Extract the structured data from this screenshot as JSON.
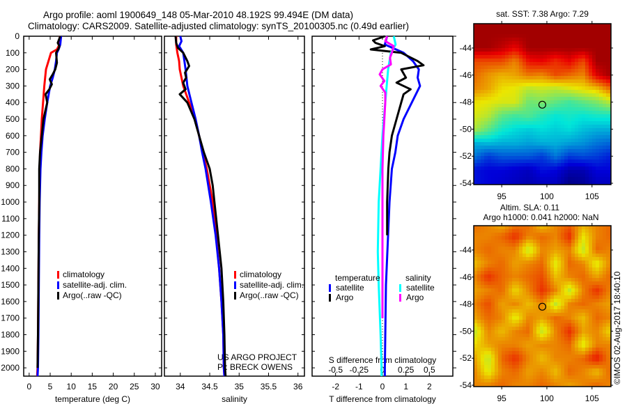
{
  "header": {
    "line1": "Argo profile: aoml 1900649_148 05-Mar-2010 48.192S 99.494E (DM data)",
    "line2": "Climatology: CARS2009. Satellite-adjusted climatology: synTS_20100305.nc (0.49d earlier)"
  },
  "credits": {
    "project": "US ARGO PROJECT",
    "pi": "PI: BRECK OWENS",
    "footer": "©IMOS 02-Aug-2017 18:40:10"
  },
  "colors": {
    "climatology": "#ff0000",
    "satellite": "#0000ff",
    "argo": "#000000",
    "sal_satellite": "#00ffff",
    "sal_argo": "#ff00ff"
  },
  "chart_data": [
    {
      "id": "temperature",
      "type": "line",
      "xlabel": "temperature (deg C)",
      "ylabel": "",
      "xlim": [
        -1.3,
        31.5
      ],
      "ylim": [
        0,
        2050
      ],
      "xticks": [
        0,
        5,
        10,
        15,
        20,
        25,
        30
      ],
      "yticks": [
        0,
        100,
        200,
        300,
        400,
        500,
        600,
        700,
        800,
        900,
        1000,
        1100,
        1200,
        1300,
        1400,
        1500,
        1600,
        1700,
        1800,
        1900,
        2000
      ],
      "legend": {
        "position": "lower-middle",
        "entries": [
          "climatology",
          "satellite-adj. clim.",
          "Argo(..raw -QC)"
        ]
      },
      "series": [
        {
          "name": "climatology",
          "color_key": "climatology",
          "depth": [
            0,
            50,
            80,
            100,
            150,
            200,
            250,
            300,
            400,
            500,
            600,
            700,
            800,
            1000,
            1200,
            1500,
            1800,
            2000,
            2050
          ],
          "values": [
            7.3,
            7.2,
            6.6,
            5.2,
            4.6,
            4.0,
            3.8,
            3.6,
            3.3,
            3.0,
            2.8,
            2.6,
            2.5,
            2.4,
            2.3,
            2.2,
            2.1,
            2.0,
            1.9
          ]
        },
        {
          "name": "satellite-adj. clim.",
          "color_key": "satellite",
          "depth": [
            0,
            50,
            80,
            100,
            150,
            200,
            250,
            300,
            400,
            500,
            600,
            700,
            800,
            1000,
            1200,
            1500,
            1800,
            2000,
            2050
          ],
          "values": [
            7.6,
            7.4,
            7.0,
            6.6,
            6.4,
            6.1,
            5.6,
            5.0,
            4.3,
            3.7,
            3.2,
            2.9,
            2.7,
            2.5,
            2.4,
            2.3,
            2.2,
            2.1,
            2.0
          ]
        },
        {
          "name": "Argo(..raw -QC)",
          "color_key": "argo",
          "depth": [
            0,
            40,
            60,
            75,
            100,
            160,
            200,
            230,
            260,
            290,
            320,
            350,
            400,
            500,
            600,
            700,
            800,
            1000,
            1200,
            1500,
            1800,
            2000
          ],
          "values": [
            7.4,
            6.8,
            7.2,
            7.0,
            6.4,
            6.6,
            6.2,
            5.6,
            4.9,
            5.4,
            4.8,
            3.9,
            4.3,
            3.4,
            3.0,
            2.6,
            2.4,
            2.4,
            2.3,
            2.2,
            2.1,
            2.0
          ]
        }
      ]
    },
    {
      "id": "salinity",
      "type": "line",
      "xlabel": "salinity",
      "xlim": [
        33.73,
        36.11
      ],
      "ylim": [
        0,
        2050
      ],
      "xticks": [
        34,
        34.5,
        35,
        35.5,
        36
      ],
      "yticks": [
        0,
        100,
        200,
        300,
        400,
        500,
        600,
        700,
        800,
        900,
        1000,
        1100,
        1200,
        1300,
        1400,
        1500,
        1600,
        1700,
        1800,
        1900,
        2000
      ],
      "legend": {
        "position": "lower-middle",
        "entries": [
          "climatology",
          "satellite-adj. clim.",
          "Argo(..raw -QC)"
        ]
      },
      "series": [
        {
          "name": "climatology",
          "color_key": "climatology",
          "depth": [
            0,
            50,
            100,
            150,
            200,
            300,
            400,
            500,
            600,
            700,
            800,
            1000,
            1200,
            1400,
            1600,
            1800,
            2000,
            2050
          ],
          "values": [
            33.93,
            33.93,
            33.95,
            33.98,
            33.99,
            34.05,
            34.15,
            34.25,
            34.32,
            34.38,
            34.45,
            34.55,
            34.61,
            34.66,
            34.7,
            34.73,
            34.74,
            34.75
          ]
        },
        {
          "name": "satellite-adj. clim.",
          "color_key": "satellite",
          "depth": [
            0,
            30,
            60,
            100,
            150,
            200,
            300,
            400,
            500,
            600,
            700,
            800,
            1000,
            1200,
            1400,
            1600,
            1800,
            2000,
            2050
          ],
          "values": [
            34.0,
            34.02,
            33.98,
            34.05,
            34.07,
            34.09,
            34.12,
            34.19,
            34.26,
            34.32,
            34.37,
            34.43,
            34.52,
            34.6,
            34.66,
            34.7,
            34.73,
            34.74,
            34.75
          ]
        },
        {
          "name": "Argo(..raw -QC)",
          "color_key": "argo",
          "depth": [
            0,
            40,
            70,
            100,
            150,
            180,
            220,
            250,
            280,
            320,
            350,
            400,
            500,
            600,
            700,
            800,
            900,
            1000,
            1200,
            1400,
            1600,
            1800,
            2000,
            2050
          ],
          "values": [
            33.92,
            33.93,
            33.96,
            34.05,
            34.12,
            34.15,
            34.08,
            34.1,
            34.05,
            34.09,
            33.99,
            34.12,
            34.24,
            34.32,
            34.4,
            34.5,
            34.55,
            34.58,
            34.64,
            34.7,
            34.73,
            34.75,
            34.76,
            34.77
          ]
        }
      ]
    },
    {
      "id": "difference",
      "type": "line",
      "xlabel": "T difference from climatology",
      "x2label": "S difference from climatology",
      "xlim": [
        -3.0,
        3.0
      ],
      "x2lim": [
        -0.75,
        0.75
      ],
      "ylim": [
        0,
        2050
      ],
      "xticks": [
        -2,
        -1,
        0,
        1,
        2
      ],
      "x2ticks": [
        -0.5,
        -0.25,
        0,
        0.25,
        0.5
      ],
      "x2ticklabels": [
        "-0.5",
        "-0.25",
        "0",
        "0.25",
        "0.5"
      ],
      "legend": {
        "position": "lower-middle",
        "temperature_title": "temperature",
        "salinity_title": "salinity",
        "entries": [
          "satellite",
          "Argo",
          "satellite",
          "Argo"
        ]
      },
      "series": [
        {
          "name": "T satellite",
          "axis": "T",
          "color_key": "satellite",
          "depth": [
            0,
            50,
            100,
            150,
            200,
            250,
            300,
            400,
            500,
            600,
            700,
            800,
            1000,
            1500,
            2000,
            2050
          ],
          "values": [
            0.2,
            0.1,
            0.9,
            1.3,
            1.55,
            1.5,
            1.6,
            1.25,
            0.9,
            0.65,
            0.55,
            0.4,
            0.3,
            0.15,
            0.1,
            0.1
          ]
        },
        {
          "name": "T Argo",
          "axis": "T",
          "color_key": "argo",
          "depth": [
            0,
            25,
            40,
            60,
            80,
            100,
            150,
            175,
            200,
            250,
            280,
            320,
            350,
            400,
            500,
            600,
            700,
            800,
            1000,
            1200
          ],
          "values": [
            0.1,
            -0.4,
            -0.3,
            0.1,
            -0.5,
            0.8,
            1.5,
            1.75,
            0.8,
            1.0,
            0.6,
            1.2,
            0.9,
            0.8,
            0.6,
            0.4,
            0.3,
            0.25,
            0.2,
            0.2
          ]
        },
        {
          "name": "S satellite",
          "axis": "S",
          "color_key": "sal_satellite",
          "depth": [
            0,
            50,
            100,
            200,
            400,
            600,
            800,
            1000,
            1300,
            1500,
            1800,
            2000,
            2050
          ],
          "values": [
            0.12,
            0.14,
            0.09,
            0.06,
            0.03,
            0.0,
            -0.02,
            -0.04,
            -0.05,
            -0.04,
            -0.02,
            -0.01,
            -0.01
          ]
        },
        {
          "name": "S Argo",
          "axis": "S",
          "color_key": "sal_argo",
          "depth": [
            0,
            30,
            60,
            100,
            130,
            170,
            200,
            230,
            270,
            300,
            340,
            400,
            500,
            600,
            800,
            1000,
            1500,
            1700
          ],
          "values": [
            0.05,
            0.03,
            0.12,
            0.1,
            0.08,
            0.09,
            0.0,
            -0.03,
            0.02,
            -0.02,
            0.03,
            0.03,
            0.02,
            0.01,
            0.0,
            0.0,
            0.0,
            0.0
          ]
        }
      ]
    },
    {
      "id": "sst_map",
      "type": "heatmap",
      "title": "sat. SST: 7.38 Argo: 7.29",
      "xticks": [
        95,
        100,
        105
      ],
      "yticks": [
        -44,
        -46,
        -48,
        -50,
        -52,
        -54
      ],
      "xlim": [
        91.9,
        107.1
      ],
      "ylim": [
        -54.1,
        -42.2
      ],
      "lons": [
        92,
        93.5,
        95,
        96.5,
        98,
        99.5,
        101,
        102.5,
        104,
        105.5,
        107
      ],
      "lats": [
        -42,
        -43,
        -44,
        -45,
        -46,
        -47,
        -48,
        -49,
        -50,
        -51,
        -52,
        -53,
        -54
      ],
      "crange": [
        4,
        10.3
      ],
      "values": [
        [
          10,
          10,
          10,
          10,
          10,
          10,
          10,
          10,
          10,
          10,
          10
        ],
        [
          10,
          10,
          10,
          10,
          10,
          10,
          10,
          10,
          10,
          10,
          10
        ],
        [
          10,
          10,
          9.8,
          9.5,
          10,
          10,
          10,
          10,
          10,
          10,
          10
        ],
        [
          9,
          9,
          9.0,
          8.6,
          9.4,
          9.5,
          9.2,
          9.5,
          9.0,
          10,
          10
        ],
        [
          8.8,
          8.5,
          8.3,
          8.4,
          8.7,
          8.6,
          9.0,
          8.8,
          8.6,
          9.6,
          10
        ],
        [
          8.6,
          8.4,
          8.0,
          7.9,
          7.6,
          7.7,
          7.6,
          7.8,
          8.0,
          8.2,
          8.8
        ],
        [
          8.0,
          7.9,
          7.8,
          7.8,
          7.1,
          7.2,
          7.0,
          6.8,
          7.0,
          7.2,
          7.6
        ],
        [
          7.8,
          7.6,
          7.0,
          6.8,
          6.9,
          6.6,
          6.4,
          6.5,
          6.4,
          6.5,
          6.5
        ],
        [
          7.5,
          7.0,
          6.5,
          6.3,
          6.2,
          6.3,
          6.2,
          6.3,
          6.1,
          6.0,
          6.0
        ],
        [
          6.0,
          6.1,
          6.0,
          6.0,
          5.9,
          6.0,
          6.0,
          5.9,
          5.8,
          5.6,
          5.5
        ],
        [
          5.6,
          5.2,
          5.4,
          5.4,
          5.4,
          5.2,
          5.6,
          5.2,
          5.3,
          5.2,
          5.0
        ],
        [
          4.9,
          4.8,
          4.8,
          4.7,
          4.6,
          4.9,
          4.8,
          4.5,
          4.5,
          4.8,
          4.8
        ],
        [
          4.9,
          4.8,
          4.7,
          4.6,
          4.5,
          4.6,
          4.6,
          4.2,
          4.3,
          4.6,
          4.6
        ]
      ],
      "marker": {
        "lon": 99.494,
        "lat": -48.192
      }
    },
    {
      "id": "sla_map",
      "type": "heatmap",
      "title": "Altim. SLA: 0.11",
      "subtitle": "Argo h1000: 0.041 h2000: NaN",
      "xticks": [
        95,
        100,
        105
      ],
      "yticks": [
        -44,
        -46,
        -48,
        -50,
        -52,
        -54
      ],
      "xlim": [
        91.9,
        107.1
      ],
      "ylim": [
        -54.1,
        -42.2
      ],
      "lons": [
        92,
        93.5,
        95,
        96.5,
        98,
        99.5,
        101,
        102.5,
        104,
        105.5,
        107
      ],
      "lats": [
        -42,
        -43,
        -44,
        -45,
        -46,
        -47,
        -48,
        -49,
        -50,
        -51,
        -52,
        -53,
        -54
      ],
      "crange": [
        -0.4,
        0.4
      ],
      "values": [
        [
          0.1,
          0.05,
          -0.05,
          0.05,
          0.1,
          -0.1,
          0.05,
          0.1,
          0.0,
          0.05,
          0.1
        ],
        [
          0.05,
          0.05,
          0.1,
          0.2,
          0.05,
          0.1,
          0.05,
          0.2,
          -0.12,
          0.05,
          0.1
        ],
        [
          0.05,
          0.1,
          0.05,
          0.05,
          -0.2,
          0.05,
          0.0,
          0.05,
          -0.2,
          0.1,
          0.05
        ],
        [
          -0.05,
          0.05,
          0.1,
          0.0,
          0.05,
          0.1,
          -0.15,
          0.1,
          0.05,
          -0.15,
          0.05
        ],
        [
          0.05,
          0.2,
          0.1,
          0.05,
          0.1,
          0.15,
          -0.05,
          0.05,
          0.1,
          0.0,
          0.1
        ],
        [
          0.0,
          0.05,
          0.1,
          -0.1,
          0.05,
          0.2,
          0.05,
          -0.2,
          0.05,
          0.2,
          0.05
        ],
        [
          0.05,
          0.15,
          0.0,
          0.05,
          -0.05,
          0.05,
          -0.2,
          0.05,
          0.1,
          0.05,
          0.0
        ],
        [
          0.0,
          0.1,
          0.05,
          -0.15,
          0.05,
          0.0,
          0.1,
          0.05,
          -0.05,
          0.1,
          0.05
        ],
        [
          -0.2,
          0.05,
          -0.05,
          0.05,
          0.1,
          -0.2,
          0.05,
          0.2,
          0.0,
          0.05,
          -0.1
        ],
        [
          -0.1,
          0.0,
          0.05,
          0.05,
          0.0,
          0.05,
          0.05,
          0.1,
          -0.15,
          0.05,
          0.05
        ],
        [
          0.0,
          -0.2,
          0.1,
          0.2,
          0.05,
          -0.05,
          0.05,
          0.05,
          0.1,
          0.25,
          0.05
        ],
        [
          0.05,
          -0.15,
          0.05,
          0.1,
          0.0,
          0.05,
          -0.05,
          0.1,
          0.05,
          -0.05,
          0.1
        ],
        [
          0.05,
          0.05,
          0.1,
          0.05,
          0.05,
          0.1,
          0.05,
          0.0,
          0.05,
          0.1,
          0.05
        ]
      ],
      "marker": {
        "lon": 99.494,
        "lat": -48.192
      }
    }
  ]
}
